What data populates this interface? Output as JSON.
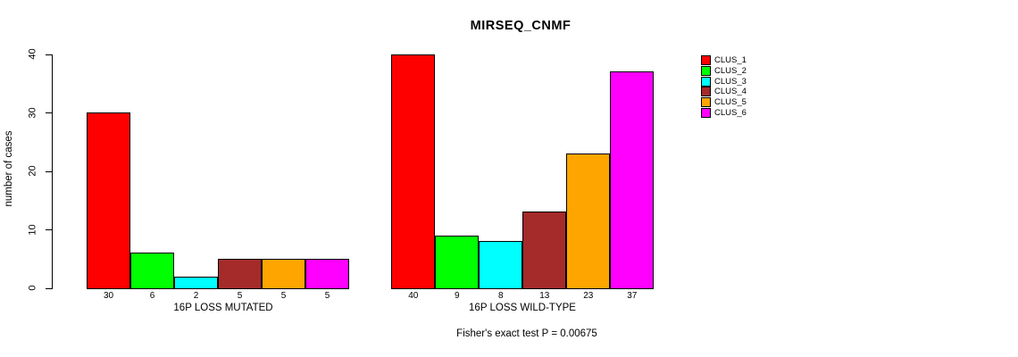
{
  "chart_data": {
    "type": "bar",
    "title": "MIRSEQ_CNMF",
    "ylabel": "number of cases",
    "ylim": [
      0,
      40
    ],
    "yticks": [
      0,
      10,
      20,
      30,
      40
    ],
    "grid": false,
    "legend_position": "right",
    "legend": [
      {
        "label": "CLUS_1",
        "color": "#FF0000"
      },
      {
        "label": "CLUS_2",
        "color": "#00FF00"
      },
      {
        "label": "CLUS_3",
        "color": "#00FFFF"
      },
      {
        "label": "CLUS_4",
        "color": "#A52A2A"
      },
      {
        "label": "CLUS_5",
        "color": "#FFA500"
      },
      {
        "label": "CLUS_6",
        "color": "#FF00FF"
      }
    ],
    "groups": [
      {
        "xlabel": "16P LOSS MUTATED",
        "categories": [
          "CLUS_1",
          "CLUS_2",
          "CLUS_3",
          "CLUS_4",
          "CLUS_5",
          "CLUS_6"
        ],
        "values": [
          30,
          6,
          2,
          5,
          5,
          5
        ],
        "bar_labels": [
          "30",
          "6",
          "2",
          "5",
          "5",
          "5"
        ]
      },
      {
        "xlabel": "16P LOSS WILD-TYPE",
        "categories": [
          "CLUS_1",
          "CLUS_2",
          "CLUS_3",
          "CLUS_4",
          "CLUS_5",
          "CLUS_6"
        ],
        "values": [
          40,
          9,
          8,
          13,
          23,
          37
        ],
        "bar_labels": [
          "40",
          "9",
          "8",
          "13",
          "23",
          "37"
        ]
      }
    ],
    "footnote": "Fisher's exact test P = 0.00675"
  }
}
